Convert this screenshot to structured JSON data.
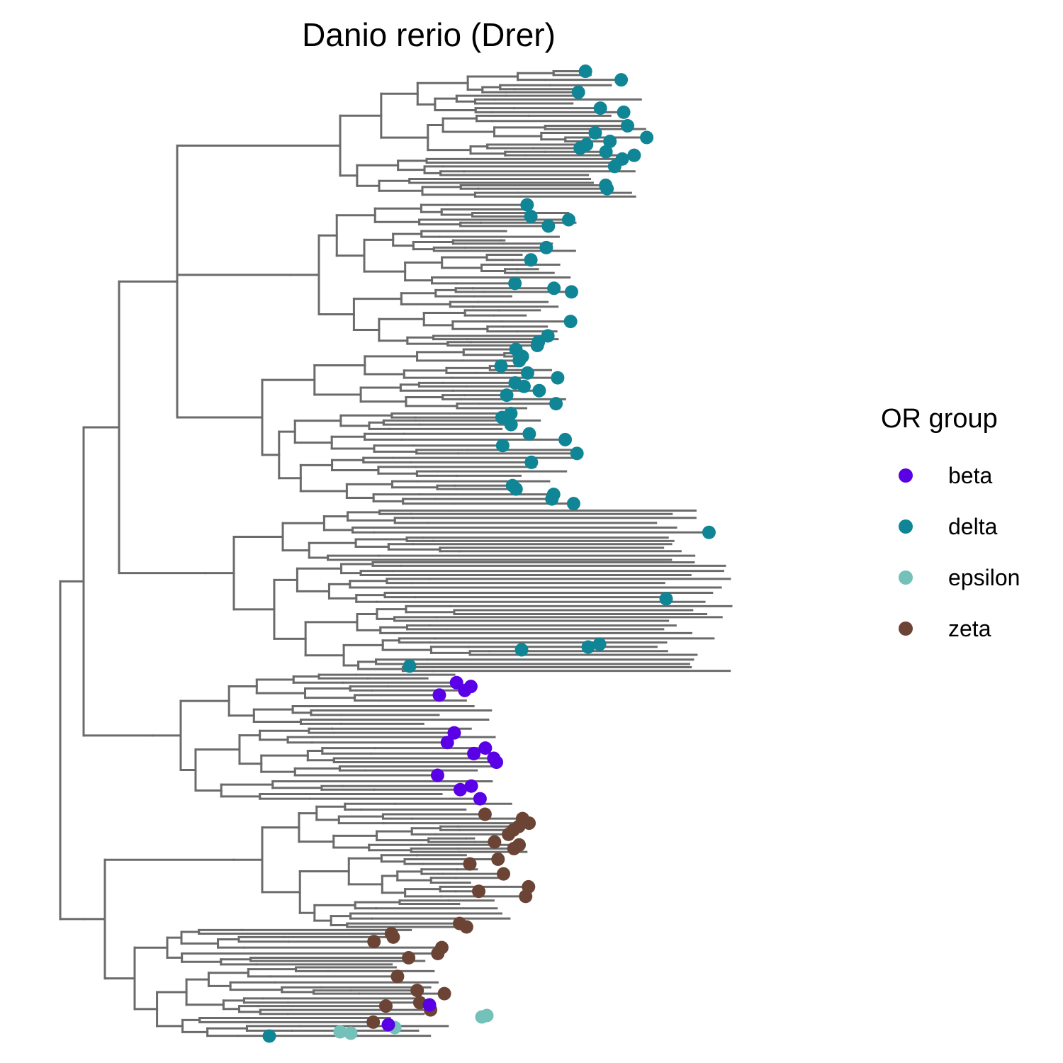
{
  "title": "Danio rerio (Drer)",
  "legend": {
    "title": "OR group",
    "items": [
      {
        "label": "beta",
        "color": "#5a00e6"
      },
      {
        "label": "delta",
        "color": "#0f8595"
      },
      {
        "label": "epsilon",
        "color": "#73c1b8"
      },
      {
        "label": "zeta",
        "color": "#6b4435"
      }
    ]
  },
  "tree": {
    "branch_color": "#6b6b6b"
  }
}
